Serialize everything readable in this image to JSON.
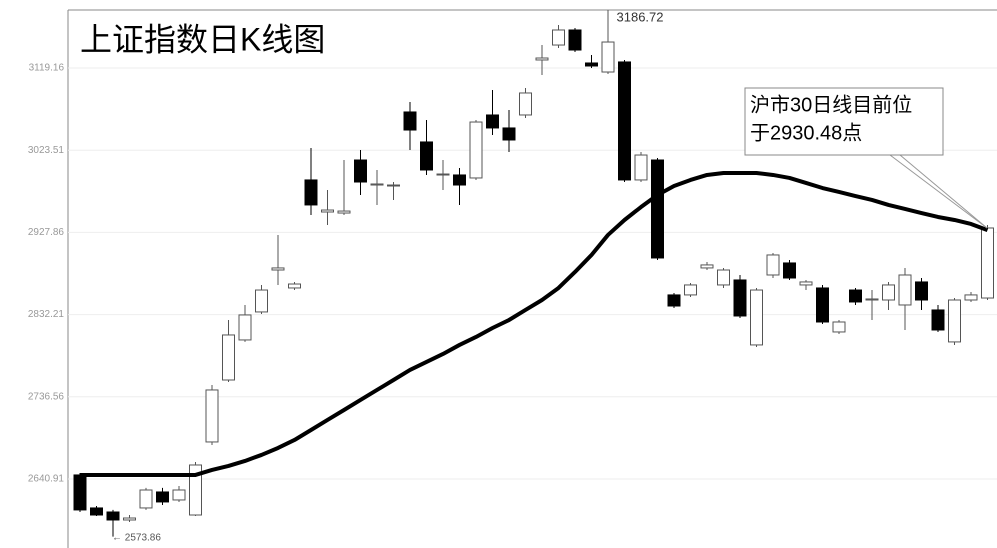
{
  "chart_data": {
    "type": "candlestick",
    "title": "上证指数日K线图",
    "high_label": "3186.72",
    "low_label": "← 2573.86",
    "annotation": [
      "沪市30日线目前位",
      "于2930.48点"
    ],
    "ylim": [
      2560.6,
      3198.3
    ],
    "yticks": [
      2640.91,
      2736.56,
      2832.21,
      2927.86,
      3023.51,
      3119.16
    ],
    "grid": true,
    "up_color": "#ffffff",
    "down_color": "#000000",
    "edge_color": "#555555",
    "open": [
      2645.6,
      2607.2,
      2602.5,
      2593.2,
      2607.2,
      2625.8,
      2616.5,
      2599.0,
      2684.0,
      2756.1,
      2802.7,
      2835.3,
      2884.1,
      2863.2,
      2988.9,
      2951.6,
      2950.4,
      3012.1,
      2983.0,
      2981.9,
      3068.0,
      3033.1,
      2994.7,
      2994.7,
      2991.2,
      3064.5,
      3049.4,
      3064.5,
      3128.5,
      3145.9,
      3163.4,
      3125.0,
      3114.5,
      3126.2,
      2988.9,
      3012.1,
      2855.1,
      2855.1,
      2886.5,
      2866.7,
      2872.5,
      2796.9,
      2878.3,
      2892.3,
      2866.7,
      2863.2,
      2812.0,
      2860.8,
      2849.2,
      2849.2,
      2843.4,
      2870.2,
      2837.6,
      2800.4,
      2849.2,
      2851.5
    ],
    "high": [
      2647.9,
      2609.5,
      2604.9,
      2599.0,
      2630.5,
      2630.5,
      2632.8,
      2660.7,
      2750.3,
      2825.9,
      2843.4,
      2866.7,
      2924.9,
      2870.2,
      3026.1,
      2977.2,
      3012.1,
      3023.8,
      3000.5,
      2986.5,
      3079.6,
      3058.7,
      3012.1,
      3002.8,
      3058.7,
      3093.6,
      3070.3,
      3095.9,
      3145.9,
      3169.2,
      3165.7,
      3134.3,
      3186.72,
      3128.5,
      3021.4,
      3014.4,
      2857.4,
      2869.0,
      2893.4,
      2886.5,
      2878.3,
      2863.2,
      2903.9,
      2895.8,
      2872.5,
      2866.7,
      2825.9,
      2863.2,
      2860.8,
      2870.2,
      2886.5,
      2874.8,
      2843.4,
      2851.5,
      2858.5,
      2936.5
    ],
    "low": [
      2602.5,
      2597.9,
      2573.86,
      2590.9,
      2604.9,
      2610.7,
      2614.2,
      2597.9,
      2680.5,
      2753.8,
      2800.4,
      2832.9,
      2866.7,
      2860.8,
      2948.1,
      2936.5,
      2948.1,
      2971.4,
      2959.8,
      2965.6,
      3023.8,
      2994.7,
      2977.2,
      2959.8,
      2988.9,
      3041.2,
      3021.4,
      3061.0,
      3111.0,
      3142.4,
      3137.8,
      3119.2,
      3112.2,
      2986.5,
      2986.5,
      2895.8,
      2839.9,
      2852.7,
      2884.1,
      2863.2,
      2828.3,
      2794.5,
      2874.8,
      2872.5,
      2860.8,
      2821.3,
      2809.7,
      2843.4,
      2825.9,
      2837.6,
      2814.3,
      2837.6,
      2812.0,
      2796.9,
      2846.9,
      2849.2
    ],
    "close": [
      2604.9,
      2599.0,
      2593.2,
      2595.5,
      2628.1,
      2614.2,
      2628.1,
      2657.2,
      2744.5,
      2808.5,
      2831.8,
      2860.8,
      2886.5,
      2867.8,
      2959.8,
      2953.9,
      2952.7,
      2986.5,
      2984.2,
      2983.0,
      3047.0,
      3000.5,
      2995.8,
      2983.0,
      3056.3,
      3049.4,
      3035.4,
      3090.1,
      3130.8,
      3163.4,
      3140.1,
      3121.5,
      3149.4,
      2988.9,
      3017.9,
      2898.1,
      2842.2,
      2866.7,
      2890.0,
      2884.1,
      2830.6,
      2860.8,
      2901.6,
      2874.8,
      2870.2,
      2823.6,
      2823.6,
      2846.9,
      2850.4,
      2866.7,
      2878.3,
      2849.2,
      2814.3,
      2849.2,
      2855.1,
      2933.0
    ],
    "ma": {
      "color": "#000000",
      "values": [
        2645.6,
        2645.6,
        2645.6,
        2645.6,
        2645.6,
        2645.6,
        2645.6,
        2645.6,
        2651.4,
        2656.1,
        2661.9,
        2668.9,
        2677.0,
        2686.3,
        2697.9,
        2709.6,
        2721.2,
        2732.9,
        2744.5,
        2756.1,
        2767.8,
        2777.1,
        2786.4,
        2796.9,
        2806.2,
        2816.6,
        2825.9,
        2837.6,
        2849.2,
        2863.2,
        2881.8,
        2901.6,
        2924.9,
        2942.3,
        2957.4,
        2971.4,
        2981.9,
        2988.9,
        2994.7,
        2997.0,
        2997.0,
        2997.0,
        2994.7,
        2991.2,
        2985.4,
        2979.5,
        2974.9,
        2970.2,
        2965.6,
        2959.8,
        2955.1,
        2950.4,
        2945.8,
        2942.3,
        2937.7,
        2930.48
      ]
    }
  }
}
